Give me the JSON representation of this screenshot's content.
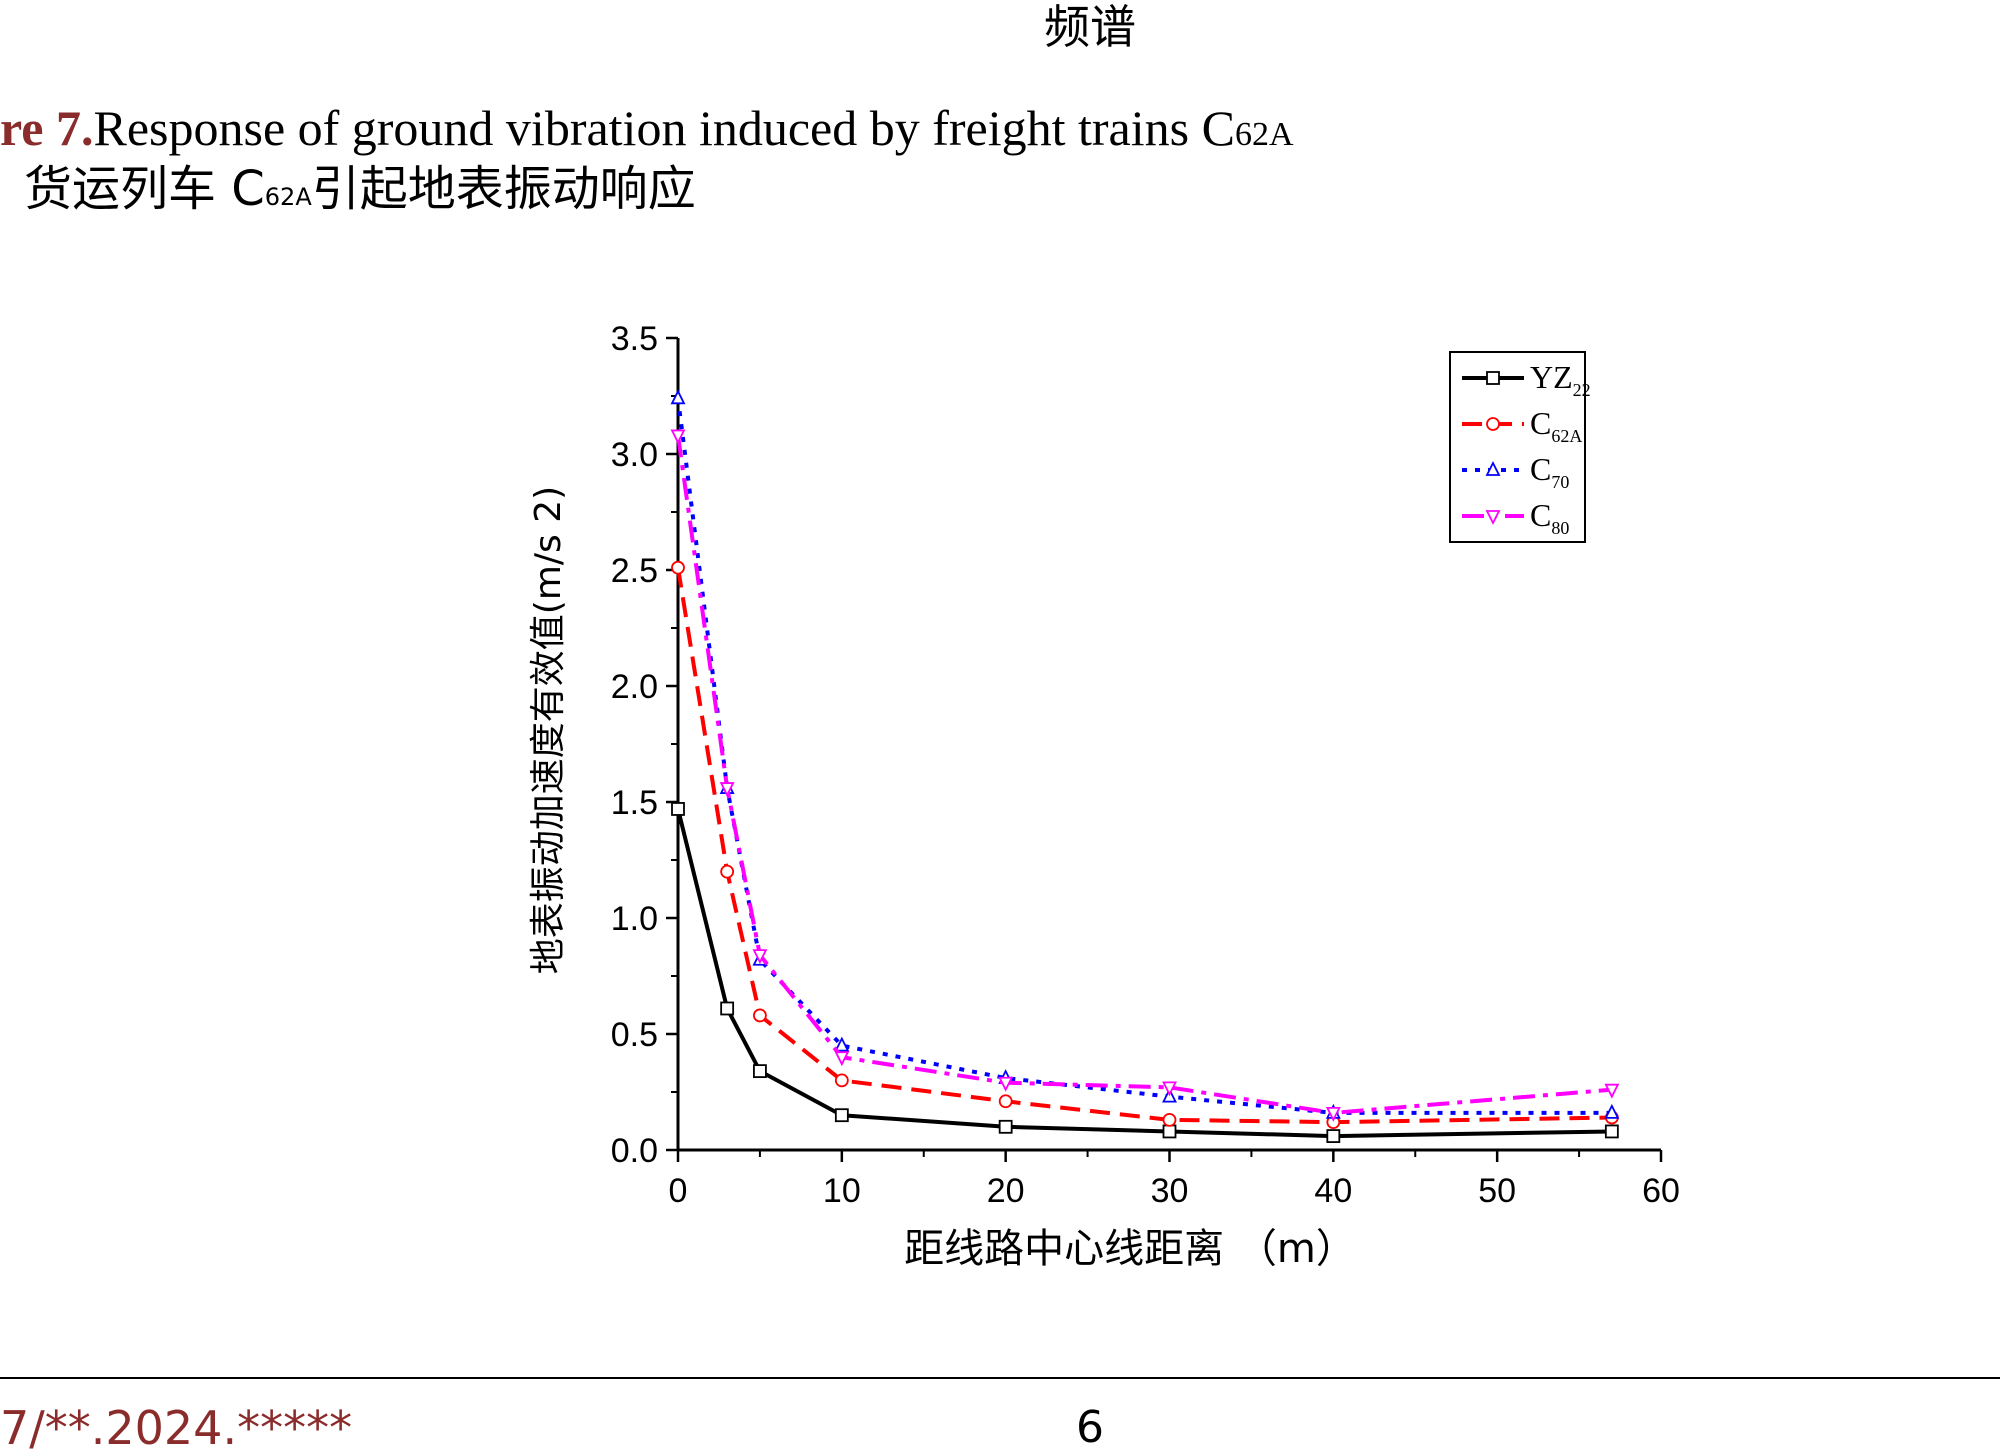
{
  "page": {
    "top_caption": "频谱",
    "figure_label": "re 7.",
    "figure_title_en": "Response of ground vibration induced by freight trains C",
    "figure_title_en_sub": "62A",
    "figure_title_cn_pre": "货运列车 C",
    "figure_title_cn_sub": "62A",
    "figure_title_cn_post": "引起地表振动响应",
    "footer_doi": "7/**.2024.*****",
    "footer_page": "6"
  },
  "colors": {
    "YZ22": "#000000",
    "C62A": "#ff0000",
    "C70": "#0000ff",
    "C80": "#ff00ff",
    "accent": "#8b2c2c"
  },
  "chart_data": {
    "type": "line",
    "xlabel": "距线路中心线距离 （m）",
    "ylabel": "地表振动加速度有效值(m/s 2)",
    "xlim": [
      0,
      60
    ],
    "ylim": [
      0,
      3.5
    ],
    "x_ticks": [
      "0",
      "10",
      "20",
      "30",
      "40",
      "50",
      "60"
    ],
    "y_ticks": [
      "0.0",
      "0.5",
      "1.0",
      "1.5",
      "2.0",
      "2.5",
      "3.0",
      "3.5"
    ],
    "grid": false,
    "legend_position": "top-right",
    "x": [
      0,
      3,
      5,
      10,
      20,
      30,
      40,
      57
    ],
    "series": [
      {
        "name": "YZ",
        "name_sub": "22",
        "key": "YZ22",
        "marker": "square",
        "dash": "solid",
        "values": [
          1.47,
          0.61,
          0.34,
          0.15,
          0.1,
          0.08,
          0.06,
          0.08
        ]
      },
      {
        "name": "C",
        "name_sub": "62A",
        "key": "C62A",
        "marker": "circle",
        "dash": "dashed",
        "values": [
          2.51,
          1.2,
          0.58,
          0.3,
          0.21,
          0.13,
          0.12,
          0.14
        ]
      },
      {
        "name": "C",
        "name_sub": "70",
        "key": "C70",
        "marker": "triangle-up",
        "dash": "dotted",
        "values": [
          3.24,
          1.56,
          0.82,
          0.45,
          0.31,
          0.23,
          0.16,
          0.16
        ]
      },
      {
        "name": "C",
        "name_sub": "80",
        "key": "C80",
        "marker": "triangle-down",
        "dash": "dashdot",
        "values": [
          3.08,
          1.56,
          0.84,
          0.4,
          0.29,
          0.27,
          0.16,
          0.26
        ]
      }
    ]
  }
}
